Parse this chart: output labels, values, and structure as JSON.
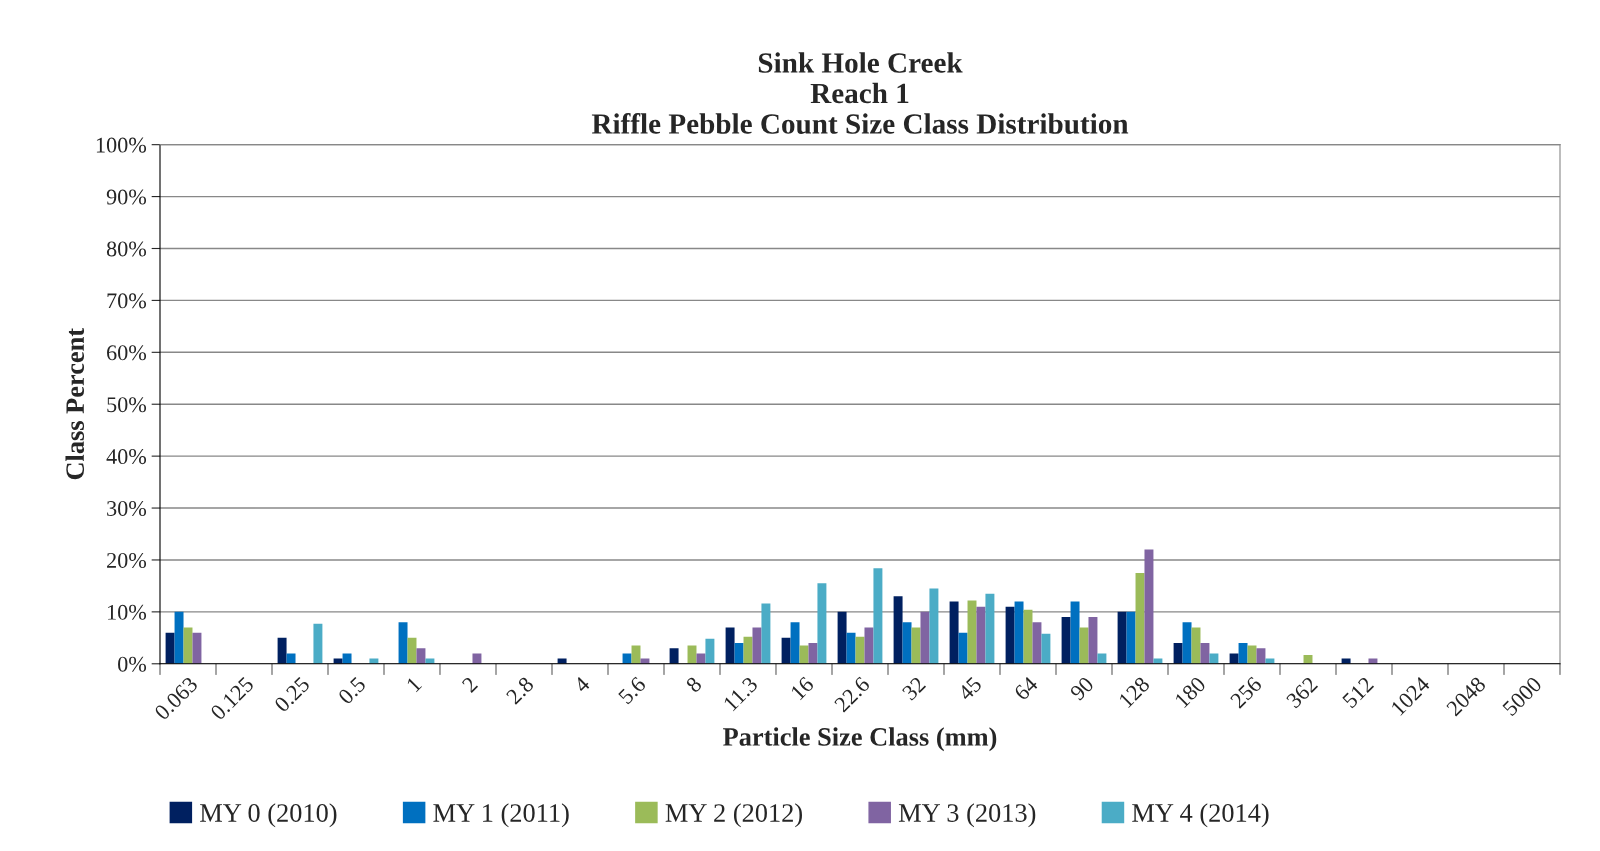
{
  "chart_data": {
    "type": "bar",
    "title": "Sink Hole Creek\nReach 1\nRiffle Pebble Count Size Class Distribution",
    "xlabel": "Particle Size Class (mm)",
    "ylabel": "Class Percent",
    "categories": [
      "0.063",
      "0.125",
      "0.25",
      "0.5",
      "1",
      "2",
      "2.8",
      "4",
      "5.6",
      "8",
      "11.3",
      "16",
      "22.6",
      "32",
      "45",
      "64",
      "90",
      "128",
      "180",
      "256",
      "362",
      "512",
      "1024",
      "2048",
      "5000"
    ],
    "series": [
      {
        "name": "MY 0 (2010)",
        "color": "#002060",
        "values": [
          6,
          0,
          5,
          1,
          0,
          0,
          0,
          1,
          0,
          3,
          7,
          5,
          10,
          13,
          12,
          11,
          9,
          10,
          4,
          2,
          0,
          1,
          0,
          0,
          0
        ]
      },
      {
        "name": "MY 1 (2011)",
        "color": "#0070c0",
        "values": [
          10,
          0,
          2,
          2,
          8,
          0,
          0,
          0,
          2,
          0,
          4,
          8,
          6,
          8,
          6,
          12,
          12,
          10,
          8,
          4,
          0,
          0,
          0,
          0,
          0
        ]
      },
      {
        "name": "MY 2 (2012)",
        "color": "#9bbb59",
        "values": [
          7,
          0,
          0,
          0,
          5,
          0,
          0,
          0,
          3.5,
          3.5,
          5.2,
          3.5,
          5.2,
          7,
          12.2,
          10.4,
          7,
          17.5,
          7,
          3.5,
          1.7,
          0,
          0,
          0,
          0
        ]
      },
      {
        "name": "MY 3 (2013)",
        "color": "#8064a2",
        "values": [
          6,
          0,
          0,
          0,
          3,
          2,
          0,
          0,
          1,
          2,
          7,
          4,
          7,
          10,
          11,
          8,
          9,
          22,
          4,
          3,
          0,
          1,
          0,
          0,
          0
        ]
      },
      {
        "name": "MY 4 (2014)",
        "color": "#4bacc6",
        "values": [
          0,
          0,
          7.7,
          1,
          1,
          0,
          0,
          0,
          0,
          4.8,
          11.6,
          15.5,
          18.4,
          14.5,
          13.5,
          5.8,
          2,
          1,
          2,
          1,
          0,
          0,
          0,
          0,
          0
        ]
      }
    ],
    "ylim": [
      0,
      100
    ],
    "yticks": [
      {
        "value": 0,
        "label": "0%"
      },
      {
        "value": 10,
        "label": "10%"
      },
      {
        "value": 20,
        "label": "20%"
      },
      {
        "value": 30,
        "label": "30%"
      },
      {
        "value": 40,
        "label": "40%"
      },
      {
        "value": 50,
        "label": "50%"
      },
      {
        "value": 60,
        "label": "60%"
      },
      {
        "value": 70,
        "label": "70%"
      },
      {
        "value": 80,
        "label": "80%"
      },
      {
        "value": 90,
        "label": "90%"
      },
      {
        "value": 100,
        "label": "100%"
      }
    ],
    "grid": "y",
    "legend": "bottom"
  }
}
